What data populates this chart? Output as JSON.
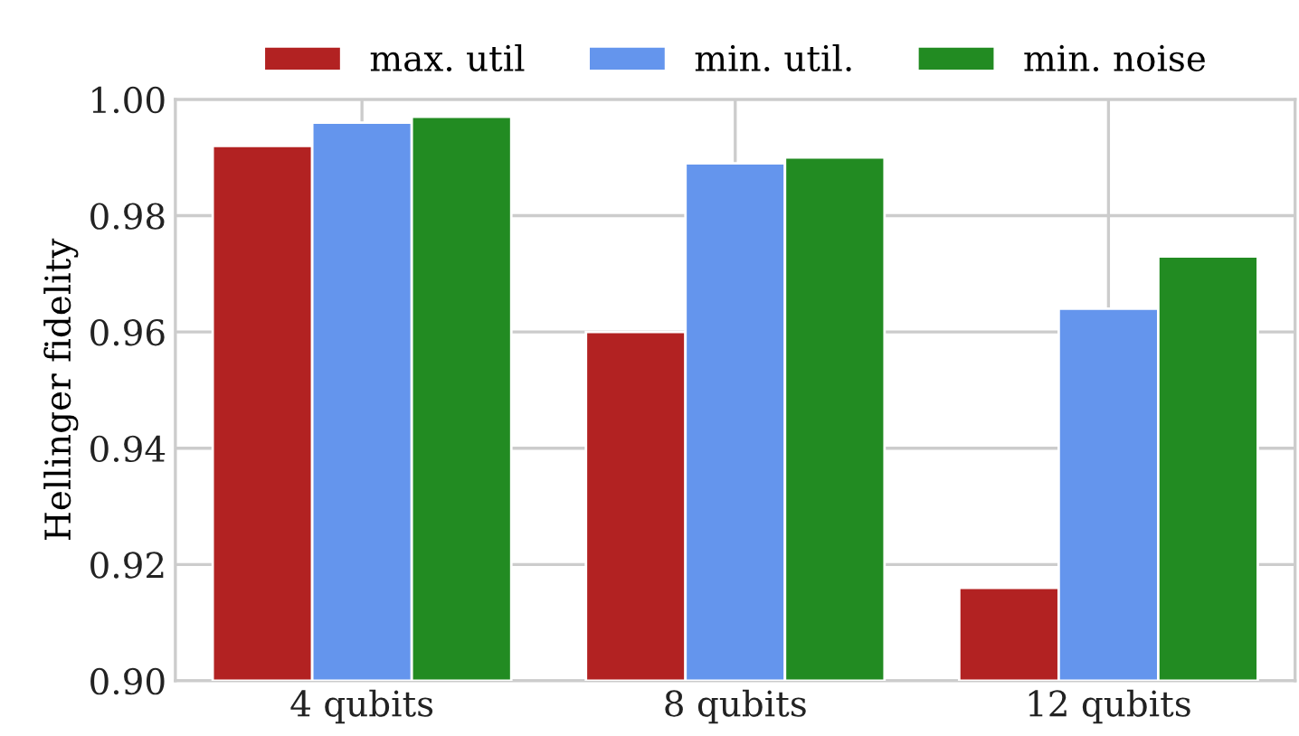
{
  "chart_data": {
    "type": "bar",
    "ylabel": "Hellinger fidelity",
    "categories": [
      "4 qubits",
      "8 qubits",
      "12 qubits"
    ],
    "series": [
      {
        "name": "max. util",
        "color": "#b22222",
        "values": [
          0.992,
          0.96,
          0.916
        ]
      },
      {
        "name": "min. util.",
        "color": "#6495ed",
        "values": [
          0.996,
          0.989,
          0.964
        ]
      },
      {
        "name": "min. noise",
        "color": "#228b22",
        "values": [
          0.997,
          0.99,
          0.973
        ]
      }
    ],
    "ylim": [
      0.9,
      1.0
    ],
    "yticks": [
      {
        "value": 0.9,
        "label": "0.90"
      },
      0.92,
      0.94,
      0.96,
      0.98,
      {
        "value": 1.0,
        "label": "1.00"
      }
    ],
    "grid": true,
    "legend": "top"
  }
}
